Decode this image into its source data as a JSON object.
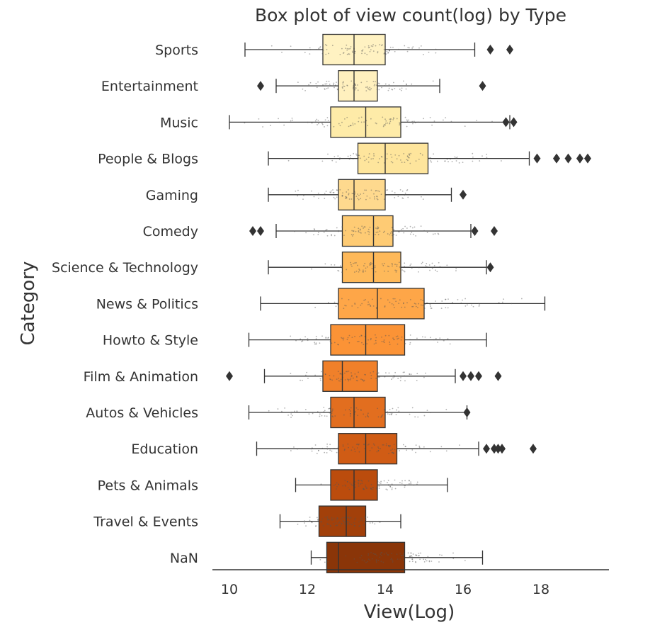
{
  "chart_data": {
    "type": "box",
    "title": "Box plot of view count(log) by Type",
    "xlabel": "View(Log)",
    "ylabel": "Category",
    "xlim": [
      9.6,
      19.6
    ],
    "xticks": [
      "10",
      "12",
      "14",
      "16",
      "18"
    ],
    "grid": false,
    "orientation": "horizontal",
    "palette": "YlOrBr",
    "categories": [
      "Sports",
      "Entertainment",
      "Music",
      "People & Blogs",
      "Gaming",
      "Comedy",
      "Science & Technology",
      "News & Politics",
      "Howto & Style",
      "Film & Animation",
      "Autos & Vehicles",
      "Education",
      "Pets & Animals",
      "Travel & Events",
      "NaN"
    ],
    "box_colors": [
      "#fff2c2",
      "#fff0be",
      "#feeba8",
      "#fee59c",
      "#fed98e",
      "#fecb74",
      "#feb95a",
      "#fea648",
      "#fb9336",
      "#f0802a",
      "#e26e1f",
      "#d05c15",
      "#bb4c0d",
      "#a2400a",
      "#8a3508"
    ],
    "boxes": [
      {
        "whisker_low": 10.4,
        "q1": 12.4,
        "median": 13.2,
        "q3": 14.0,
        "whisker_high": 16.3,
        "outliers": [
          16.7,
          17.2
        ]
      },
      {
        "whisker_low": 11.2,
        "q1": 12.8,
        "median": 13.2,
        "q3": 13.8,
        "whisker_high": 15.4,
        "outliers": [
          10.8,
          16.5
        ]
      },
      {
        "whisker_low": 10.0,
        "q1": 12.6,
        "median": 13.5,
        "q3": 14.4,
        "whisker_high": 17.2,
        "outliers": [
          17.1,
          17.3
        ]
      },
      {
        "whisker_low": 11.0,
        "q1": 13.3,
        "median": 14.0,
        "q3": 15.1,
        "whisker_high": 17.7,
        "outliers": [
          17.9,
          18.4,
          18.7,
          19.0,
          19.2
        ]
      },
      {
        "whisker_low": 11.0,
        "q1": 12.8,
        "median": 13.2,
        "q3": 14.0,
        "whisker_high": 15.7,
        "outliers": [
          16.0
        ]
      },
      {
        "whisker_low": 11.2,
        "q1": 12.9,
        "median": 13.7,
        "q3": 14.2,
        "whisker_high": 16.2,
        "outliers": [
          10.6,
          10.8,
          16.3,
          16.8
        ]
      },
      {
        "whisker_low": 11.0,
        "q1": 12.9,
        "median": 13.7,
        "q3": 14.4,
        "whisker_high": 16.6,
        "outliers": [
          16.7
        ]
      },
      {
        "whisker_low": 10.8,
        "q1": 12.8,
        "median": 13.8,
        "q3": 15.0,
        "whisker_high": 18.1,
        "outliers": []
      },
      {
        "whisker_low": 10.5,
        "q1": 12.6,
        "median": 13.5,
        "q3": 14.5,
        "whisker_high": 16.6,
        "outliers": []
      },
      {
        "whisker_low": 10.9,
        "q1": 12.4,
        "median": 12.9,
        "q3": 13.8,
        "whisker_high": 15.8,
        "outliers": [
          10.0,
          16.0,
          16.2,
          16.4,
          16.9
        ]
      },
      {
        "whisker_low": 10.5,
        "q1": 12.6,
        "median": 13.2,
        "q3": 14.0,
        "whisker_high": 16.1,
        "outliers": [
          16.1
        ]
      },
      {
        "whisker_low": 10.7,
        "q1": 12.8,
        "median": 13.5,
        "q3": 14.3,
        "whisker_high": 16.4,
        "outliers": [
          16.6,
          16.8,
          16.9,
          17.0,
          17.8
        ]
      },
      {
        "whisker_low": 11.7,
        "q1": 12.6,
        "median": 13.2,
        "q3": 13.8,
        "whisker_high": 15.6,
        "outliers": []
      },
      {
        "whisker_low": 11.3,
        "q1": 12.3,
        "median": 13.0,
        "q3": 13.5,
        "whisker_high": 14.4,
        "outliers": []
      },
      {
        "whisker_low": 12.1,
        "q1": 12.5,
        "median": 12.8,
        "q3": 14.5,
        "whisker_high": 16.5,
        "outliers": []
      }
    ]
  }
}
